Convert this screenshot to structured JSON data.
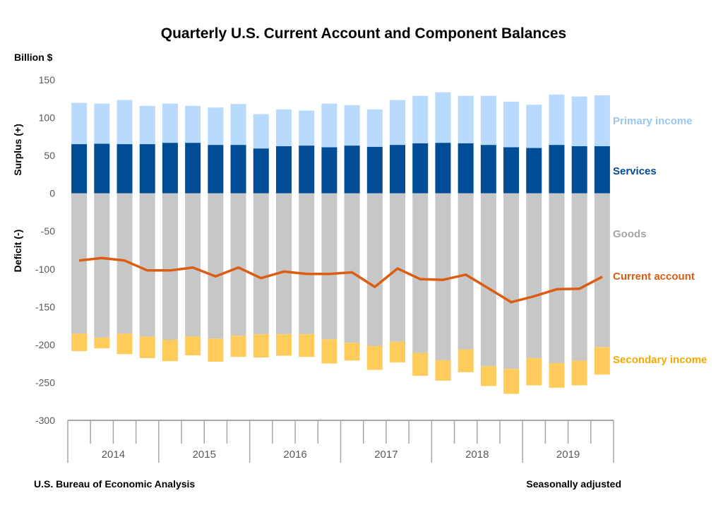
{
  "chart_data": {
    "type": "bar",
    "stacked": true,
    "title": "Quarterly U.S. Current Account and Component Balances",
    "unit_label": "Billion $",
    "ylabel_positive": "Surplus (+)",
    "ylabel_negative": "Deficit (-)",
    "ylim": [
      -300,
      150
    ],
    "yticks": [
      150,
      100,
      50,
      0,
      -50,
      -100,
      -150,
      -200,
      -250,
      -300
    ],
    "years": [
      "2014",
      "2015",
      "2016",
      "2017",
      "2018",
      "2019"
    ],
    "categories": [
      "2014Q1",
      "2014Q2",
      "2014Q3",
      "2014Q4",
      "2015Q1",
      "2015Q2",
      "2015Q3",
      "2015Q4",
      "2016Q1",
      "2016Q2",
      "2016Q3",
      "2016Q4",
      "2017Q1",
      "2017Q2",
      "2017Q3",
      "2017Q4",
      "2018Q1",
      "2018Q2",
      "2018Q3",
      "2018Q4",
      "2019Q1",
      "2019Q2",
      "2019Q3",
      "2019Q4"
    ],
    "series": [
      {
        "name": "Services",
        "kind": "bar",
        "color": "#004c97",
        "values": [
          65.0,
          65.5,
          65.0,
          65.0,
          66.8,
          66.8,
          64.0,
          64.0,
          59.3,
          62.4,
          63.1,
          60.9,
          63.1,
          61.5,
          64.0,
          66.2,
          66.8,
          66.2,
          64.0,
          60.9,
          59.9,
          64.0,
          62.4,
          62.4
        ]
      },
      {
        "name": "Primary income",
        "kind": "bar",
        "color": "#b7dafd",
        "values": [
          54.6,
          53.1,
          58.3,
          50.6,
          51.8,
          48.8,
          49.4,
          54.1,
          45.4,
          48.5,
          46.3,
          57.7,
          53.4,
          49.4,
          59.3,
          62.7,
          66.7,
          62.7,
          64.9,
          60.3,
          57.2,
          66.5,
          65.6,
          67.1
        ]
      },
      {
        "name": "Goods",
        "kind": "bar",
        "color": "#c6c7c6",
        "values": [
          -185.5,
          -190.8,
          -185.5,
          -189.2,
          -193.6,
          -189.2,
          -192.0,
          -188.3,
          -186.2,
          -186.2,
          -186.2,
          -192.9,
          -197.6,
          -201.6,
          -196.0,
          -210.9,
          -220.6,
          -206.2,
          -228.3,
          -232.1,
          -217.8,
          -224.3,
          -221.2,
          -203.2
        ]
      },
      {
        "name": "Secondary income",
        "kind": "bar",
        "color": "#ffcc5c",
        "values": [
          -23.0,
          -14.0,
          -27.0,
          -28.6,
          -28.2,
          -24.9,
          -30.5,
          -27.9,
          -30.7,
          -28.4,
          -30.0,
          -32.0,
          -23.3,
          -31.7,
          -27.4,
          -30.2,
          -27.0,
          -30.2,
          -26.4,
          -32.9,
          -36.0,
          -32.6,
          -32.6,
          -36.3
        ]
      },
      {
        "name": "Current account",
        "kind": "line",
        "color": "#dc5c12",
        "values": [
          -88.8,
          -85.5,
          -88.8,
          -101.9,
          -101.9,
          -98.1,
          -109.7,
          -98.1,
          -112.1,
          -103.4,
          -106.5,
          -106.5,
          -104.4,
          -123.6,
          -99.4,
          -113.4,
          -114.3,
          -107.5,
          -125.5,
          -143.8,
          -136.1,
          -126.7,
          -126.1,
          -110.3
        ]
      }
    ],
    "legend_label_colors": {
      "Primary income": "#9cc5ee",
      "Services": "#004c97",
      "Goods": "#a6a6a6",
      "Current account": "#dc5c12",
      "Secondary income": "#f5a800"
    },
    "grid": false
  },
  "footer": {
    "source": "U.S. Bureau of Economic Analysis",
    "note": "Seasonally adjusted"
  }
}
